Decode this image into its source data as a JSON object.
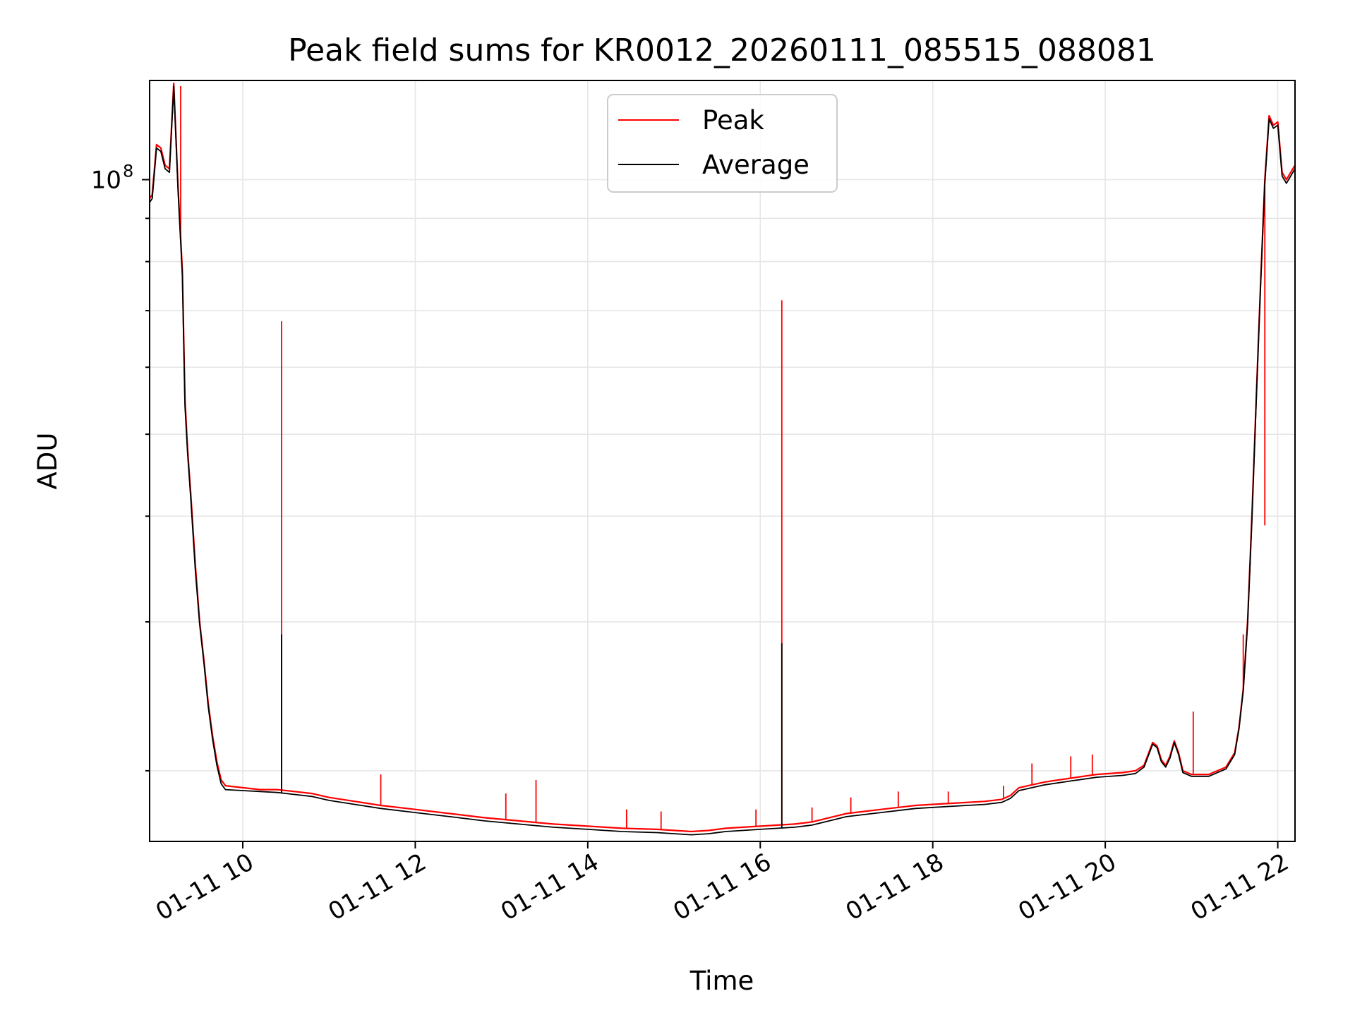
{
  "chart_data": {
    "type": "line",
    "title": "Peak field sums for KR0012_20260111_085515_088081",
    "xlabel": "Time",
    "ylabel": "ADU",
    "yscale": "log",
    "xlim": [
      8.92,
      22.2
    ],
    "ylim": [
      16500000,
      131000000
    ],
    "x_unit": "hours of 2026-01-11",
    "x_ticks": [
      {
        "value": 10,
        "label": "01-11 10"
      },
      {
        "value": 12,
        "label": "01-11 12"
      },
      {
        "value": 14,
        "label": "01-11 14"
      },
      {
        "value": 16,
        "label": "01-11 16"
      },
      {
        "value": 18,
        "label": "01-11 18"
      },
      {
        "value": 20,
        "label": "01-11 20"
      },
      {
        "value": 22,
        "label": "01-11 22"
      }
    ],
    "y_major_ticks": [
      {
        "value": 100000000,
        "base": "10",
        "exp": "8"
      }
    ],
    "y_minor_ticks": [
      20000000,
      30000000,
      40000000,
      50000000,
      60000000,
      70000000,
      80000000,
      90000000
    ],
    "grid": true,
    "legend_position": "top-center",
    "series": [
      {
        "name": "Peak",
        "color": "#ff0000",
        "x": [
          8.92,
          8.95,
          9.0,
          9.05,
          9.1,
          9.15,
          9.2,
          9.25,
          9.3,
          9.33,
          9.36,
          9.4,
          9.45,
          9.5,
          9.55,
          9.6,
          9.65,
          9.7,
          9.75,
          9.8,
          10.0,
          10.2,
          10.4,
          10.6,
          10.8,
          11.0,
          11.3,
          11.6,
          12.0,
          12.4,
          12.8,
          13.2,
          13.6,
          14.0,
          14.4,
          14.8,
          15.2,
          15.4,
          15.6,
          16.0,
          16.2,
          16.4,
          16.6,
          16.8,
          17.0,
          17.4,
          17.8,
          18.2,
          18.6,
          18.8,
          18.9,
          19.0,
          19.3,
          19.6,
          19.9,
          20.2,
          20.35,
          20.45,
          20.55,
          20.6,
          20.65,
          20.7,
          20.75,
          20.8,
          20.85,
          20.9,
          21.0,
          21.2,
          21.4,
          21.5,
          21.55,
          21.6,
          21.65,
          21.7,
          21.75,
          21.8,
          21.85,
          21.9,
          21.95,
          22.0,
          22.05,
          22.1,
          22.2
        ],
        "y": [
          95000000,
          96000000,
          110000000,
          109000000,
          104000000,
          103000000,
          130000000,
          98000000,
          78000000,
          55000000,
          48000000,
          42000000,
          35000000,
          30000000,
          27000000,
          24000000,
          22000000,
          20500000,
          19500000,
          19200000,
          19100000,
          19000000,
          19000000,
          18900000,
          18800000,
          18600000,
          18400000,
          18200000,
          18000000,
          17800000,
          17600000,
          17450000,
          17300000,
          17200000,
          17100000,
          17050000,
          16950000,
          17000000,
          17100000,
          17200000,
          17250000,
          17300000,
          17400000,
          17600000,
          17800000,
          18000000,
          18200000,
          18300000,
          18400000,
          18500000,
          18700000,
          19100000,
          19400000,
          19600000,
          19800000,
          19900000,
          20000000,
          20300000,
          21600000,
          21400000,
          20600000,
          20300000,
          20800000,
          21700000,
          21000000,
          20000000,
          19800000,
          19800000,
          20200000,
          21000000,
          22500000,
          25000000,
          30000000,
          40000000,
          55000000,
          75000000,
          100000000,
          119000000,
          116000000,
          117000000,
          102000000,
          100000000,
          104000000
        ],
        "spikes": [
          {
            "x": 9.28,
            "y": 129000000
          },
          {
            "x": 10.45,
            "y": 68000000
          },
          {
            "x": 16.25,
            "y": 72000000
          },
          {
            "x": 21.02,
            "y": 23500000
          },
          {
            "x": 13.05,
            "y": 18800000
          },
          {
            "x": 13.4,
            "y": 19500000
          },
          {
            "x": 14.45,
            "y": 18000000
          },
          {
            "x": 14.85,
            "y": 17900000
          },
          {
            "x": 15.95,
            "y": 18000000
          },
          {
            "x": 16.6,
            "y": 18100000
          },
          {
            "x": 17.05,
            "y": 18600000
          },
          {
            "x": 17.6,
            "y": 18900000
          },
          {
            "x": 18.18,
            "y": 18900000
          },
          {
            "x": 18.82,
            "y": 19200000
          },
          {
            "x": 19.15,
            "y": 20400000
          },
          {
            "x": 19.6,
            "y": 20800000
          },
          {
            "x": 19.85,
            "y": 20900000
          },
          {
            "x": 21.85,
            "y": 39000000
          },
          {
            "x": 21.6,
            "y": 29000000
          },
          {
            "x": 9.7,
            "y": 20500000
          },
          {
            "x": 11.6,
            "y": 19800000
          }
        ]
      },
      {
        "name": "Average",
        "color": "#000000",
        "x": [
          8.92,
          8.95,
          9.0,
          9.05,
          9.1,
          9.15,
          9.2,
          9.25,
          9.3,
          9.33,
          9.36,
          9.4,
          9.45,
          9.5,
          9.55,
          9.6,
          9.65,
          9.7,
          9.75,
          9.8,
          10.0,
          10.2,
          10.4,
          10.6,
          10.8,
          11.0,
          11.3,
          11.6,
          12.0,
          12.4,
          12.8,
          13.2,
          13.6,
          14.0,
          14.4,
          14.8,
          15.2,
          15.4,
          15.6,
          16.0,
          16.2,
          16.4,
          16.6,
          16.8,
          17.0,
          17.4,
          17.8,
          18.2,
          18.6,
          18.8,
          18.9,
          19.0,
          19.3,
          19.6,
          19.9,
          20.2,
          20.35,
          20.45,
          20.55,
          20.6,
          20.65,
          20.7,
          20.75,
          20.8,
          20.85,
          20.9,
          21.0,
          21.2,
          21.4,
          21.5,
          21.55,
          21.6,
          21.65,
          21.7,
          21.75,
          21.8,
          21.85,
          21.9,
          21.95,
          22.0,
          22.05,
          22.1,
          22.2
        ],
        "y": [
          94000000,
          95000000,
          109000000,
          108000000,
          103000000,
          102000000,
          129000000,
          97000000,
          77000000,
          54000000,
          47500000,
          41500000,
          34500000,
          29800000,
          26800000,
          23800000,
          21800000,
          20300000,
          19300000,
          19000000,
          18950000,
          18900000,
          18850000,
          18750000,
          18650000,
          18450000,
          18250000,
          18050000,
          17850000,
          17650000,
          17450000,
          17300000,
          17150000,
          17050000,
          16950000,
          16900000,
          16800000,
          16850000,
          16950000,
          17050000,
          17100000,
          17150000,
          17250000,
          17450000,
          17650000,
          17850000,
          18050000,
          18150000,
          18250000,
          18350000,
          18550000,
          18950000,
          19250000,
          19450000,
          19650000,
          19750000,
          19850000,
          20200000,
          21500000,
          21300000,
          20500000,
          20200000,
          20700000,
          21600000,
          20900000,
          19900000,
          19700000,
          19700000,
          20100000,
          20900000,
          22400000,
          24900000,
          29800000,
          39500000,
          54500000,
          74500000,
          99000000,
          118000000,
          115000000,
          116000000,
          101000000,
          99000000,
          103000000
        ],
        "spikes": [
          {
            "x": 10.45,
            "y": 29000000
          },
          {
            "x": 16.25,
            "y": 28300000
          }
        ]
      }
    ]
  }
}
